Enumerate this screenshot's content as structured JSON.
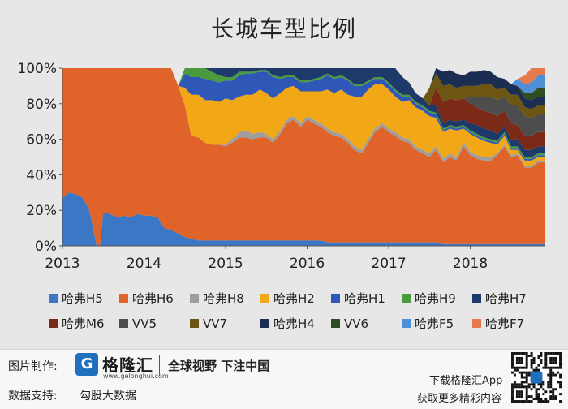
{
  "title": "长城车型比例",
  "chart_data": {
    "type": "area",
    "stacked": true,
    "percent": true,
    "title": "长城车型比例",
    "x": [
      2013.0,
      2013.08,
      2013.17,
      2013.25,
      2013.33,
      2013.42,
      2013.46,
      2013.5,
      2013.58,
      2013.67,
      2013.75,
      2013.83,
      2013.92,
      2014.0,
      2014.08,
      2014.17,
      2014.25,
      2014.33,
      2014.42,
      2014.5,
      2014.58,
      2014.67,
      2014.75,
      2014.83,
      2014.92,
      2015.0,
      2015.08,
      2015.17,
      2015.25,
      2015.33,
      2015.42,
      2015.5,
      2015.58,
      2015.67,
      2015.75,
      2015.83,
      2015.92,
      2016.0,
      2016.08,
      2016.17,
      2016.25,
      2016.33,
      2016.42,
      2016.5,
      2016.58,
      2016.67,
      2016.75,
      2016.83,
      2016.92,
      2017.0,
      2017.08,
      2017.17,
      2017.25,
      2017.33,
      2017.42,
      2017.5,
      2017.58,
      2017.67,
      2017.75,
      2017.83,
      2017.92,
      2018.0,
      2018.08,
      2018.17,
      2018.25,
      2018.33,
      2018.42,
      2018.5,
      2018.58,
      2018.67,
      2018.75,
      2018.83,
      2018.92
    ],
    "xticks": [
      "2013",
      "2014",
      "2015",
      "2016",
      "2017",
      "2018"
    ],
    "ylim": [
      0,
      100
    ],
    "yticks": [
      "0%",
      "20%",
      "40%",
      "60%",
      "80%",
      "100%"
    ],
    "legend_position": "bottom",
    "series": [
      {
        "name": "哈弗H5",
        "color": "#3b77c4",
        "values": [
          27,
          30,
          29,
          27,
          20,
          0,
          0,
          19,
          18,
          16,
          17,
          16,
          18,
          17,
          17,
          16,
          10,
          9,
          7,
          5,
          4,
          3,
          3,
          3,
          3,
          3,
          3,
          3,
          3,
          3,
          3,
          3,
          3,
          3,
          3,
          3,
          3,
          3,
          3,
          3,
          2,
          2,
          2,
          2,
          2,
          2,
          2,
          2,
          2,
          2,
          2,
          2,
          2,
          2,
          2,
          2,
          2,
          1,
          1,
          1,
          1,
          1,
          1,
          1,
          1,
          1,
          1,
          1,
          1,
          1,
          1,
          1,
          1
        ]
      },
      {
        "name": "哈弗H6",
        "color": "#e0632a",
        "values": [
          73,
          70,
          71,
          73,
          80,
          100,
          100,
          81,
          82,
          84,
          83,
          84,
          82,
          83,
          83,
          84,
          90,
          91,
          83,
          74,
          58,
          58,
          55,
          54,
          54,
          53,
          55,
          58,
          58,
          57,
          58,
          58,
          55,
          60,
          66,
          68,
          64,
          68,
          66,
          64,
          62,
          60,
          59,
          56,
          52,
          50,
          56,
          62,
          65,
          62,
          60,
          57,
          56,
          52,
          50,
          48,
          52,
          46,
          49,
          47,
          55,
          50,
          48,
          47,
          47,
          50,
          55,
          49,
          50,
          43,
          43,
          46,
          46
        ]
      },
      {
        "name": "哈弗H8",
        "color": "#9e9e9e",
        "values": [
          0,
          0,
          0,
          0,
          0,
          0,
          0,
          0,
          0,
          0,
          0,
          0,
          0,
          0,
          0,
          0,
          0,
          0,
          0,
          0,
          0,
          0,
          0,
          0,
          0,
          1,
          2,
          3,
          4,
          3,
          3,
          2,
          2,
          2,
          2,
          2,
          2,
          2,
          2,
          2,
          2,
          2,
          2,
          2,
          2,
          2,
          2,
          2,
          2,
          2,
          2,
          2,
          2,
          2,
          2,
          2,
          2,
          2,
          2,
          2,
          2,
          2,
          2,
          2,
          2,
          1,
          1,
          1,
          1,
          1,
          1,
          1,
          1
        ]
      },
      {
        "name": "哈弗H2",
        "color": "#f2a716",
        "values": [
          0,
          0,
          0,
          0,
          0,
          0,
          0,
          0,
          0,
          0,
          0,
          0,
          0,
          0,
          0,
          0,
          0,
          0,
          0,
          10,
          23,
          24,
          24,
          25,
          24,
          26,
          22,
          20,
          20,
          22,
          24,
          23,
          23,
          21,
          18,
          17,
          18,
          14,
          16,
          18,
          22,
          22,
          25,
          25,
          28,
          30,
          28,
          25,
          22,
          22,
          20,
          20,
          22,
          22,
          22,
          21,
          16,
          15,
          14,
          15,
          8,
          10,
          10,
          9,
          8,
          5,
          5,
          3,
          2,
          3,
          3,
          2,
          2
        ]
      },
      {
        "name": "哈弗H1",
        "color": "#2f57b8",
        "values": [
          0,
          0,
          0,
          0,
          0,
          0,
          0,
          0,
          0,
          0,
          0,
          0,
          0,
          0,
          0,
          0,
          0,
          0,
          0,
          8,
          10,
          10,
          12,
          11,
          11,
          10,
          11,
          12,
          12,
          12,
          10,
          12,
          12,
          8,
          6,
          5,
          5,
          5,
          6,
          7,
          8,
          8,
          7,
          8,
          6,
          6,
          4,
          3,
          3,
          3,
          3,
          3,
          2,
          2,
          2,
          2,
          2,
          1,
          1,
          1,
          1,
          1,
          1,
          1,
          1,
          1,
          1,
          1,
          1,
          1,
          1,
          1,
          1
        ]
      },
      {
        "name": "哈弗H9",
        "color": "#4a9a3e",
        "values": [
          0,
          0,
          0,
          0,
          0,
          0,
          0,
          0,
          0,
          0,
          0,
          0,
          0,
          0,
          0,
          0,
          0,
          0,
          0,
          3,
          5,
          5,
          6,
          5,
          4,
          2,
          2,
          2,
          1,
          1,
          1,
          1,
          1,
          1,
          1,
          1,
          1,
          1,
          1,
          1,
          1,
          1,
          1,
          1,
          1,
          1,
          1,
          1,
          1,
          1,
          1,
          1,
          1,
          1,
          1,
          1,
          1,
          1,
          1,
          1,
          1,
          1,
          1,
          1,
          1,
          1,
          1,
          1,
          1,
          1,
          1,
          1,
          1
        ]
      },
      {
        "name": "哈弗H7",
        "color": "#1d3a6b",
        "values": [
          0,
          0,
          0,
          0,
          0,
          0,
          0,
          0,
          0,
          0,
          0,
          0,
          0,
          0,
          0,
          0,
          0,
          0,
          0,
          0,
          0,
          0,
          0,
          2,
          4,
          5,
          5,
          2,
          2,
          2,
          1,
          1,
          4,
          5,
          4,
          4,
          7,
          7,
          6,
          5,
          3,
          5,
          4,
          6,
          9,
          9,
          7,
          6,
          7,
          10,
          12,
          10,
          7,
          5,
          4,
          3,
          4,
          3,
          3,
          3,
          3,
          4,
          5,
          5,
          5,
          4,
          3,
          4,
          4,
          4,
          4,
          4,
          4
        ]
      },
      {
        "name": "哈弗M6",
        "color": "#7a2a16",
        "values": [
          0,
          0,
          0,
          0,
          0,
          0,
          0,
          0,
          0,
          0,
          0,
          0,
          0,
          0,
          0,
          0,
          0,
          0,
          0,
          0,
          0,
          0,
          0,
          0,
          0,
          0,
          0,
          0,
          0,
          0,
          0,
          0,
          0,
          0,
          0,
          0,
          0,
          0,
          0,
          0,
          0,
          0,
          0,
          0,
          0,
          0,
          0,
          0,
          0,
          0,
          0,
          0,
          0,
          0,
          0,
          0,
          10,
          12,
          12,
          12,
          12,
          11,
          10,
          10,
          10,
          10,
          9,
          9,
          8,
          8,
          8,
          8,
          8
        ]
      },
      {
        "name": "VV5",
        "color": "#4d4d4d",
        "values": [
          0,
          0,
          0,
          0,
          0,
          0,
          0,
          0,
          0,
          0,
          0,
          0,
          0,
          0,
          0,
          0,
          0,
          0,
          0,
          0,
          0,
          0,
          0,
          0,
          0,
          0,
          0,
          0,
          0,
          0,
          0,
          0,
          0,
          0,
          0,
          0,
          0,
          0,
          0,
          0,
          0,
          0,
          0,
          0,
          0,
          0,
          0,
          0,
          0,
          0,
          0,
          0,
          0,
          0,
          0,
          0,
          0,
          0,
          0,
          0,
          0,
          4,
          6,
          8,
          9,
          9,
          8,
          10,
          11,
          11,
          10,
          10,
          10
        ]
      },
      {
        "name": "VV7",
        "color": "#6d5612",
        "values": [
          0,
          0,
          0,
          0,
          0,
          0,
          0,
          0,
          0,
          0,
          0,
          0,
          0,
          0,
          0,
          0,
          0,
          0,
          0,
          0,
          0,
          0,
          0,
          0,
          0,
          0,
          0,
          0,
          0,
          0,
          0,
          0,
          0,
          0,
          0,
          0,
          0,
          0,
          0,
          0,
          0,
          0,
          0,
          0,
          0,
          0,
          0,
          0,
          0,
          0,
          0,
          0,
          0,
          0,
          0,
          10,
          8,
          9,
          8,
          7,
          7,
          6,
          6,
          7,
          7,
          6,
          5,
          6,
          6,
          5,
          5,
          5,
          5
        ]
      },
      {
        "name": "哈弗H4",
        "color": "#1b2d50",
        "values": [
          0,
          0,
          0,
          0,
          0,
          0,
          0,
          0,
          0,
          0,
          0,
          0,
          0,
          0,
          0,
          0,
          0,
          0,
          0,
          0,
          0,
          0,
          0,
          0,
          0,
          0,
          0,
          0,
          0,
          0,
          0,
          0,
          0,
          0,
          0,
          0,
          0,
          0,
          0,
          0,
          0,
          0,
          0,
          0,
          0,
          0,
          0,
          0,
          0,
          0,
          0,
          0,
          0,
          0,
          0,
          0,
          3,
          8,
          8,
          8,
          6,
          8,
          8,
          8,
          7,
          7,
          5,
          6,
          5,
          5,
          5,
          5,
          5
        ]
      },
      {
        "name": "VV6",
        "color": "#2e4d21",
        "values": [
          0,
          0,
          0,
          0,
          0,
          0,
          0,
          0,
          0,
          0,
          0,
          0,
          0,
          0,
          0,
          0,
          0,
          0,
          0,
          0,
          0,
          0,
          0,
          0,
          0,
          0,
          0,
          0,
          0,
          0,
          0,
          0,
          0,
          0,
          0,
          0,
          0,
          0,
          0,
          0,
          0,
          0,
          0,
          0,
          0,
          0,
          0,
          0,
          0,
          0,
          0,
          0,
          0,
          0,
          0,
          0,
          0,
          0,
          0,
          0,
          0,
          0,
          0,
          0,
          0,
          0,
          0,
          0,
          0,
          3,
          4,
          5,
          5
        ]
      },
      {
        "name": "哈弗F5",
        "color": "#4f8fd8",
        "values": [
          0,
          0,
          0,
          0,
          0,
          0,
          0,
          0,
          0,
          0,
          0,
          0,
          0,
          0,
          0,
          0,
          0,
          0,
          0,
          0,
          0,
          0,
          0,
          0,
          0,
          0,
          0,
          0,
          0,
          0,
          0,
          0,
          0,
          0,
          0,
          0,
          0,
          0,
          0,
          0,
          0,
          0,
          0,
          0,
          0,
          0,
          0,
          0,
          0,
          0,
          0,
          0,
          0,
          0,
          0,
          0,
          0,
          0,
          0,
          0,
          0,
          0,
          0,
          0,
          0,
          0,
          0,
          0,
          4,
          5,
          6,
          7,
          7
        ]
      },
      {
        "name": "哈弗F7",
        "color": "#e8794a",
        "values": [
          0,
          0,
          0,
          0,
          0,
          0,
          0,
          0,
          0,
          0,
          0,
          0,
          0,
          0,
          0,
          0,
          0,
          0,
          0,
          0,
          0,
          0,
          0,
          0,
          0,
          0,
          0,
          0,
          0,
          0,
          0,
          0,
          0,
          0,
          0,
          0,
          0,
          0,
          0,
          0,
          0,
          0,
          0,
          0,
          0,
          0,
          0,
          0,
          0,
          0,
          0,
          0,
          0,
          0,
          0,
          0,
          0,
          0,
          0,
          0,
          0,
          0,
          0,
          0,
          0,
          0,
          0,
          0,
          0,
          5,
          9,
          12,
          14
        ]
      }
    ]
  },
  "watermark": "格隆汇",
  "footer": {
    "made_by_label": "图片制作:",
    "data_support_label": "数据支持:",
    "data_source": "勾股大数据",
    "logo_text": "格隆汇",
    "logo_sub": "www.gelonghui.com",
    "slogan": "全球视野 下注中国",
    "download_line1": "下载格隆汇App",
    "download_line2": "获取更多精彩内容"
  }
}
